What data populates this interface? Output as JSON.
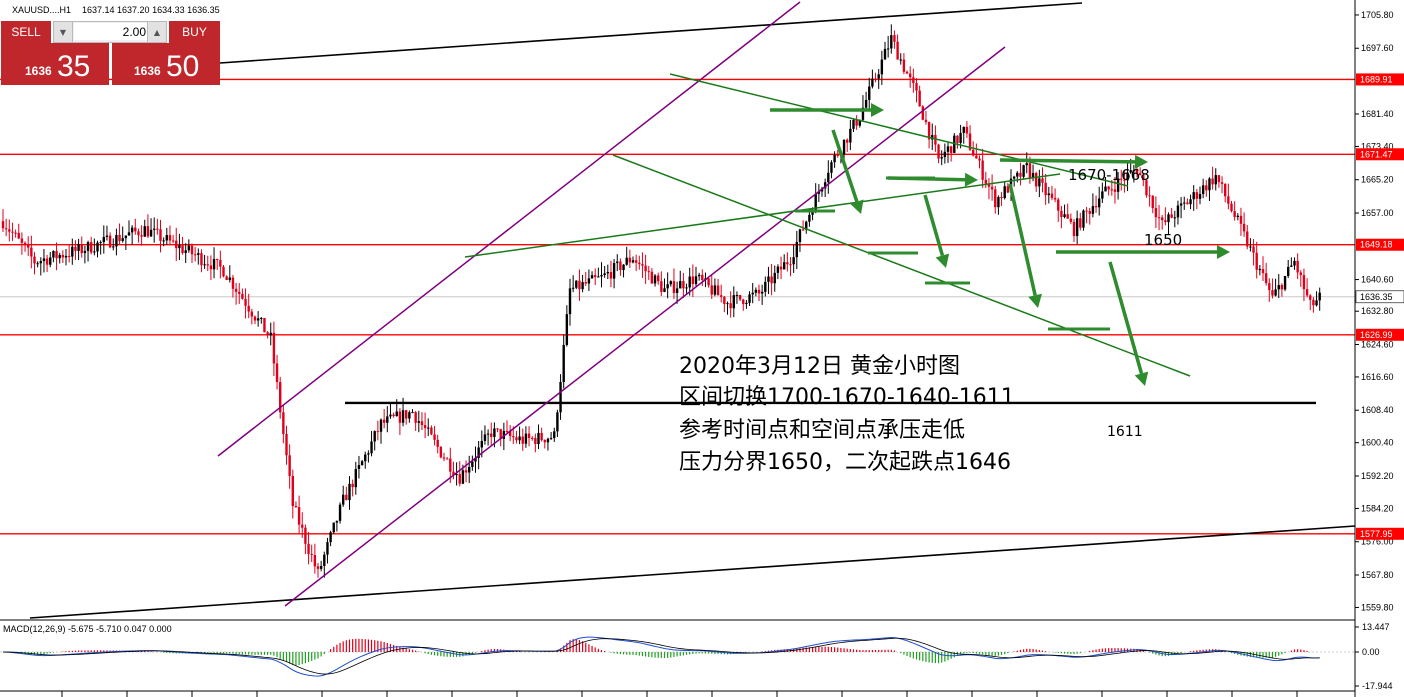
{
  "header": {
    "symbol": "XAUUSD....H1",
    "ohlc": "1637.14 1637.20 1634.33 1636.35"
  },
  "trade_panel": {
    "sell_label": "SELL",
    "buy_label": "BUY",
    "lot_value": "2.00",
    "sell_price_prefix": "1636",
    "sell_price_big": "35",
    "buy_price_prefix": "1636",
    "buy_price_big": "50"
  },
  "annotations": {
    "text_lines": [
      "2020年3月12日 黄金小时图",
      "区间切换1700-1670-1640-1611",
      "参考时间点和空间点承压走低",
      "压力分界1650，二次起跌点1646"
    ],
    "label_1670": "1670-1668",
    "label_1650": "1650",
    "label_1611": "1611"
  },
  "colors": {
    "bull": "#000000",
    "bear": "#e0001b",
    "hline": "#ff0000",
    "channel": "#800080",
    "trend": "#1a7a1a",
    "arrow": "#2e8b2e",
    "macd_hist_pos": "#e0001b",
    "macd_hist_neg": "#1f9f1f",
    "macd_line": "#1f4fd0",
    "signal_line": "#000000"
  },
  "chart_data": {
    "type": "candlestick",
    "symbol": "XAUUSD",
    "timeframe": "H1",
    "last_ohlc": {
      "open": 1637.14,
      "high": 1637.2,
      "low": 1634.33,
      "close": 1636.35
    },
    "ylim": [
      1557.2,
      1708.5
    ],
    "yticks": [
      "1705.80",
      "1697.60",
      "1681.40",
      "1673.40",
      "1665.20",
      "1657.00",
      "1640.60",
      "1632.80",
      "1624.60",
      "1616.60",
      "1608.40",
      "1600.40",
      "1592.20",
      "1584.20",
      "1576.00",
      "1567.80",
      "1559.80"
    ],
    "price_labels": [
      {
        "value": "1689.91",
        "kind": "level"
      },
      {
        "value": "1671.47",
        "kind": "level"
      },
      {
        "value": "1649.18",
        "kind": "level"
      },
      {
        "value": "1636.35",
        "kind": "current"
      },
      {
        "value": "1626.99",
        "kind": "level"
      },
      {
        "value": "1577.95",
        "kind": "level"
      }
    ],
    "horizontal_levels": [
      1689.91,
      1671.47,
      1649.18,
      1626.99,
      1577.95
    ],
    "support_level": 1610.2,
    "current_price": 1636.35,
    "waypoints": [
      [
        0,
        1655
      ],
      [
        10,
        1645
      ],
      [
        25,
        1648
      ],
      [
        45,
        1653
      ],
      [
        60,
        1647
      ],
      [
        70,
        1643
      ],
      [
        85,
        1626
      ],
      [
        92,
        1585
      ],
      [
        100,
        1568
      ],
      [
        108,
        1586
      ],
      [
        120,
        1605
      ],
      [
        130,
        1608
      ],
      [
        140,
        1597
      ],
      [
        145,
        1592
      ],
      [
        155,
        1603
      ],
      [
        165,
        1601
      ],
      [
        175,
        1602
      ],
      [
        180,
        1638
      ],
      [
        190,
        1641
      ],
      [
        200,
        1646
      ],
      [
        210,
        1638
      ],
      [
        220,
        1641
      ],
      [
        230,
        1635
      ],
      [
        240,
        1637
      ],
      [
        250,
        1646
      ],
      [
        262,
        1668
      ],
      [
        272,
        1681
      ],
      [
        282,
        1700
      ],
      [
        290,
        1686
      ],
      [
        297,
        1670
      ],
      [
        305,
        1677
      ],
      [
        315,
        1660
      ],
      [
        325,
        1668
      ],
      [
        340,
        1653
      ],
      [
        348,
        1661
      ],
      [
        360,
        1668
      ],
      [
        368,
        1654
      ],
      [
        375,
        1659
      ],
      [
        385,
        1666
      ],
      [
        393,
        1653
      ],
      [
        403,
        1636
      ],
      [
        410,
        1645
      ],
      [
        415,
        1634
      ],
      [
        418,
        1636
      ]
    ],
    "macd": {
      "label": "MACD(12,26,9) -5.675 -5.710 0.047 0.000",
      "params": [
        12,
        26,
        9
      ],
      "value": -5.675,
      "signal": -5.71,
      "yticks": [
        "13.447",
        "0.00",
        "-17.944"
      ],
      "ylim": [
        -17.944,
        13.447
      ]
    }
  }
}
